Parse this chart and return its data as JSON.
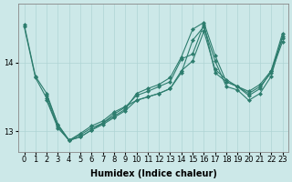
{
  "xlabel": "Humidex (Indice chaleur)",
  "ylabel": "",
  "bg_color": "#cce8e8",
  "line_color": "#2d7d6e",
  "xlim": [
    -0.5,
    23.5
  ],
  "ylim": [
    12.7,
    14.85
  ],
  "yticks": [
    13,
    14
  ],
  "xticks": [
    0,
    1,
    2,
    3,
    4,
    5,
    6,
    7,
    8,
    9,
    10,
    11,
    12,
    13,
    14,
    15,
    16,
    17,
    18,
    19,
    20,
    21,
    22,
    23
  ],
  "series": [
    {
      "x": [
        0,
        1,
        2,
        3,
        4,
        5,
        6,
        7,
        8,
        9,
        10,
        11,
        12,
        13,
        14,
        15,
        16,
        17,
        18,
        19,
        20,
        21,
        22,
        23
      ],
      "y": [
        14.55,
        13.8,
        13.55,
        13.1,
        12.87,
        12.95,
        13.05,
        13.12,
        13.25,
        13.35,
        13.52,
        13.58,
        13.65,
        13.72,
        14.05,
        14.12,
        14.55,
        13.85,
        13.72,
        13.65,
        13.58,
        13.68,
        13.88,
        14.35
      ]
    },
    {
      "x": [
        0,
        1,
        2,
        3,
        4,
        5,
        6,
        7,
        8,
        9,
        10,
        11,
        12,
        13,
        14,
        15,
        16,
        17,
        18,
        19,
        20,
        21,
        22,
        23
      ],
      "y": [
        14.52,
        13.78,
        13.48,
        13.07,
        12.87,
        12.97,
        13.08,
        13.15,
        13.28,
        13.36,
        13.45,
        13.5,
        13.55,
        13.62,
        13.88,
        14.02,
        14.45,
        13.9,
        13.75,
        13.65,
        13.55,
        13.65,
        13.85,
        14.3
      ]
    },
    {
      "x": [
        2,
        3,
        4,
        5,
        6,
        7,
        8,
        9,
        10,
        11,
        12,
        13,
        14,
        15,
        16,
        17,
        18,
        19,
        20,
        21,
        22,
        23
      ],
      "y": [
        13.52,
        13.1,
        12.87,
        12.92,
        13.02,
        13.12,
        13.22,
        13.32,
        13.55,
        13.62,
        13.68,
        13.78,
        14.08,
        14.48,
        14.58,
        14.1,
        13.72,
        13.65,
        13.52,
        13.62,
        13.88,
        14.42
      ]
    },
    {
      "x": [
        2,
        3,
        4,
        5,
        6,
        7,
        8,
        9,
        10,
        11,
        12,
        13,
        14,
        15,
        16,
        17,
        18,
        19,
        20,
        21,
        22,
        23
      ],
      "y": [
        13.45,
        13.05,
        12.87,
        12.92,
        13.02,
        13.1,
        13.2,
        13.3,
        13.45,
        13.5,
        13.55,
        13.62,
        13.85,
        14.32,
        14.52,
        14.02,
        13.65,
        13.6,
        13.45,
        13.55,
        13.8,
        14.38
      ]
    }
  ],
  "grid_color": "#aed4d4",
  "tick_fontsize": 6,
  "label_fontsize": 7,
  "marker": "D",
  "markersize": 2.0,
  "linewidth": 0.8
}
